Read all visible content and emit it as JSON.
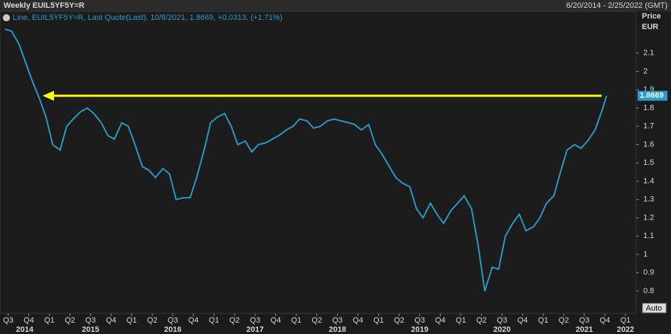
{
  "chart_data": {
    "type": "line",
    "title": "Weekly EUIL5YF5Y=R",
    "date_range": "6/20/2014 - 2/25/2022 (GMT)",
    "legend_text": "Line, EUIL5YF5Y=R, Last Quote(Last), 10/8/2021, 1.8669, +0.0313, (+1.71%)",
    "y_axis_label": "Price",
    "y_axis_unit": "EUR",
    "last_value_label": "1.8669",
    "auto_button": "Auto",
    "color": "#2a9ac6",
    "arrow_color": "#ffff00",
    "x": [
      2014.46,
      2014.54,
      2014.63,
      2014.71,
      2014.79,
      2014.88,
      2014.96,
      2015.04,
      2015.13,
      2015.21,
      2015.29,
      2015.38,
      2015.46,
      2015.54,
      2015.63,
      2015.71,
      2015.79,
      2015.88,
      2015.96,
      2016.04,
      2016.13,
      2016.21,
      2016.29,
      2016.38,
      2016.46,
      2016.54,
      2016.63,
      2016.71,
      2016.79,
      2016.88,
      2016.96,
      2017.04,
      2017.13,
      2017.21,
      2017.29,
      2017.38,
      2017.46,
      2017.54,
      2017.63,
      2017.71,
      2017.79,
      2017.88,
      2017.96,
      2018.04,
      2018.13,
      2018.21,
      2018.29,
      2018.38,
      2018.46,
      2018.54,
      2018.63,
      2018.71,
      2018.79,
      2018.88,
      2018.96,
      2019.04,
      2019.13,
      2019.21,
      2019.29,
      2019.38,
      2019.46,
      2019.54,
      2019.63,
      2019.71,
      2019.79,
      2019.88,
      2019.96,
      2020.04,
      2020.13,
      2020.21,
      2020.29,
      2020.38,
      2020.46,
      2020.54,
      2020.63,
      2020.71,
      2020.79,
      2020.88,
      2020.96,
      2021.04,
      2021.13,
      2021.21,
      2021.29,
      2021.38,
      2021.46,
      2021.54,
      2021.63,
      2021.71,
      2021.77
    ],
    "values": [
      2.23,
      2.22,
      2.15,
      2.05,
      1.95,
      1.85,
      1.75,
      1.6,
      1.57,
      1.7,
      1.74,
      1.78,
      1.8,
      1.77,
      1.72,
      1.65,
      1.63,
      1.72,
      1.7,
      1.6,
      1.48,
      1.46,
      1.42,
      1.47,
      1.44,
      1.3,
      1.31,
      1.31,
      1.42,
      1.57,
      1.72,
      1.75,
      1.77,
      1.7,
      1.6,
      1.62,
      1.56,
      1.6,
      1.61,
      1.63,
      1.65,
      1.68,
      1.7,
      1.74,
      1.73,
      1.69,
      1.7,
      1.73,
      1.74,
      1.73,
      1.72,
      1.71,
      1.68,
      1.71,
      1.6,
      1.55,
      1.48,
      1.42,
      1.39,
      1.37,
      1.25,
      1.2,
      1.28,
      1.22,
      1.17,
      1.24,
      1.28,
      1.32,
      1.25,
      1.05,
      0.8,
      0.93,
      0.92,
      1.1,
      1.17,
      1.22,
      1.13,
      1.15,
      1.2,
      1.28,
      1.32,
      1.45,
      1.57,
      1.6,
      1.58,
      1.62,
      1.68,
      1.78,
      1.8669
    ],
    "xlim": [
      2014.4,
      2022.13
    ],
    "ylim": [
      0.678,
      2.328
    ],
    "yticks": [
      0.8,
      0.9,
      1,
      1.1,
      1.2,
      1.3,
      1.4,
      1.5,
      1.6,
      1.7,
      1.8,
      1.9,
      2,
      2.1
    ],
    "xticks": [
      {
        "value": 2014.5,
        "label": "Q3"
      },
      {
        "value": 2014.75,
        "label": "Q4"
      },
      {
        "value": 2015,
        "label": "Q1"
      },
      {
        "value": 2015.25,
        "label": "Q2"
      },
      {
        "value": 2015.5,
        "label": "Q3"
      },
      {
        "value": 2015.75,
        "label": "Q4"
      },
      {
        "value": 2016,
        "label": "Q1"
      },
      {
        "value": 2016.25,
        "label": "Q2"
      },
      {
        "value": 2016.5,
        "label": "Q3"
      },
      {
        "value": 2016.75,
        "label": "Q4"
      },
      {
        "value": 2017,
        "label": "Q1"
      },
      {
        "value": 2017.25,
        "label": "Q2"
      },
      {
        "value": 2017.5,
        "label": "Q3"
      },
      {
        "value": 2017.75,
        "label": "Q4"
      },
      {
        "value": 2018,
        "label": "Q1"
      },
      {
        "value": 2018.25,
        "label": "Q2"
      },
      {
        "value": 2018.5,
        "label": "Q3"
      },
      {
        "value": 2018.75,
        "label": "Q4"
      },
      {
        "value": 2019,
        "label": "Q1"
      },
      {
        "value": 2019.25,
        "label": "Q2"
      },
      {
        "value": 2019.5,
        "label": "Q3"
      },
      {
        "value": 2019.75,
        "label": "Q4"
      },
      {
        "value": 2020,
        "label": "Q1"
      },
      {
        "value": 2020.25,
        "label": "Q2"
      },
      {
        "value": 2020.5,
        "label": "Q3"
      },
      {
        "value": 2020.75,
        "label": "Q4"
      },
      {
        "value": 2021,
        "label": "Q1"
      },
      {
        "value": 2021.25,
        "label": "Q2"
      },
      {
        "value": 2021.5,
        "label": "Q3"
      },
      {
        "value": 2021.75,
        "label": "Q4"
      },
      {
        "value": 2022,
        "label": "Q1"
      }
    ],
    "year_ticks": [
      {
        "value": 2014.7,
        "label": "2014"
      },
      {
        "value": 2015.5,
        "label": "2015"
      },
      {
        "value": 2016.5,
        "label": "2016"
      },
      {
        "value": 2017.5,
        "label": "2017"
      },
      {
        "value": 2018.5,
        "label": "2018"
      },
      {
        "value": 2019.5,
        "label": "2019"
      },
      {
        "value": 2020.5,
        "label": "2020"
      },
      {
        "value": 2021.5,
        "label": "2021"
      },
      {
        "value": 2022,
        "label": "2022"
      }
    ]
  }
}
